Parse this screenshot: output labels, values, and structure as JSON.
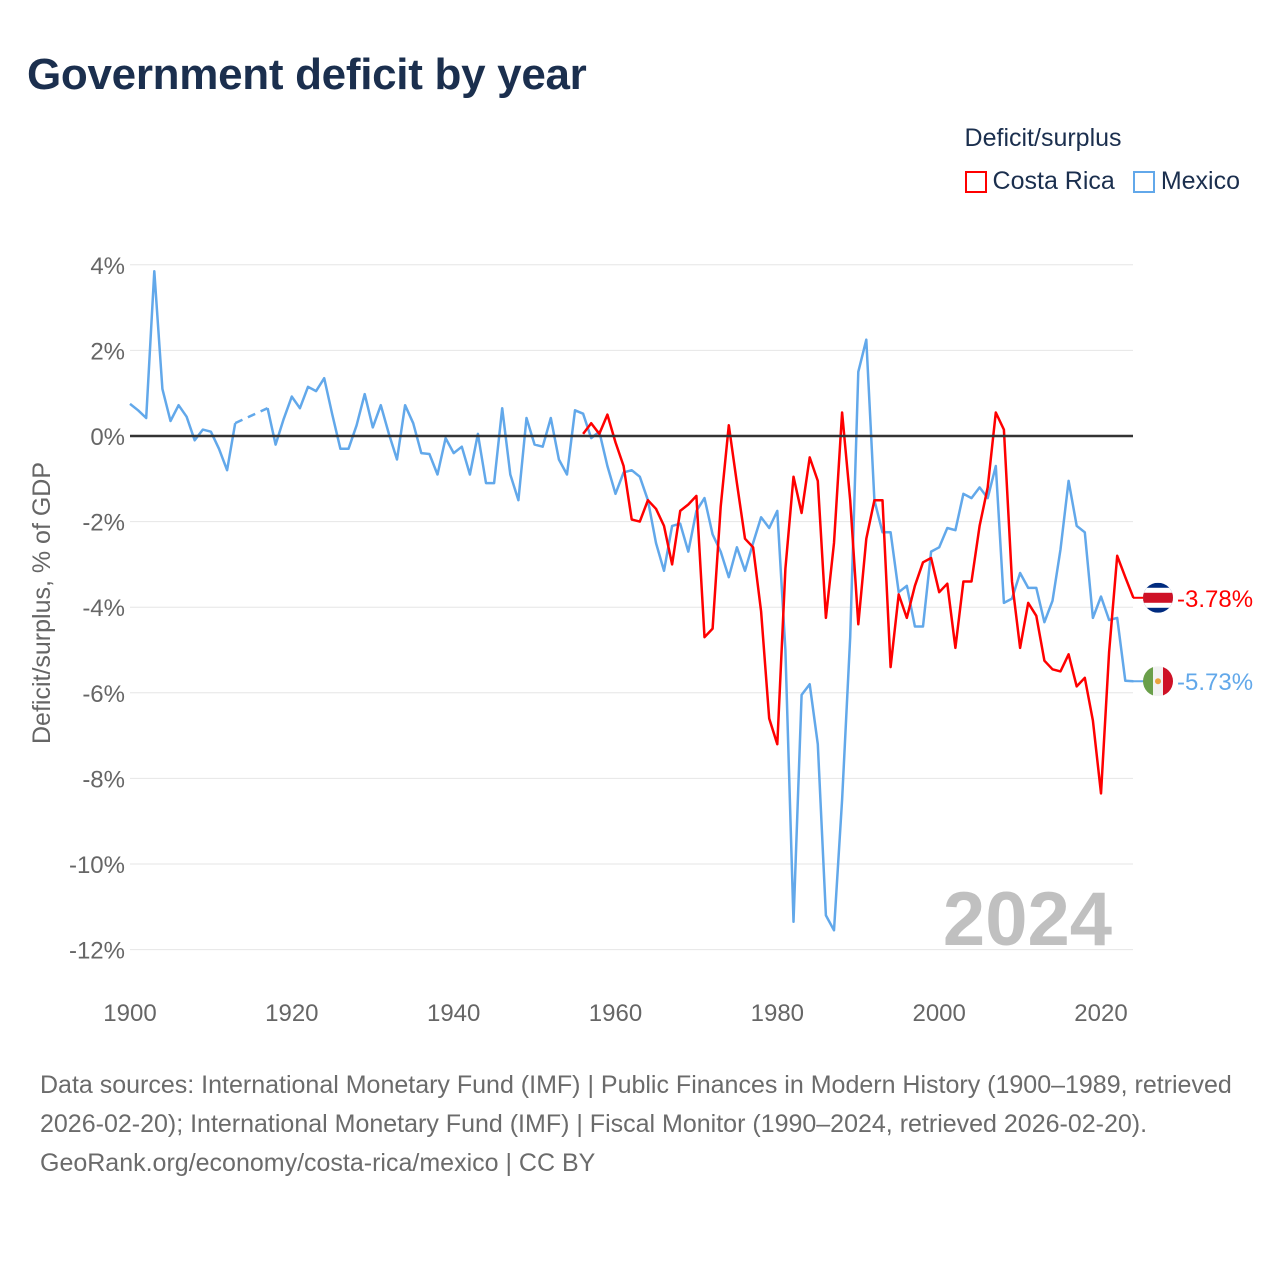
{
  "title": "Government deficit by year",
  "legend": {
    "title": "Deficit/surplus",
    "items": [
      {
        "name": "Costa Rica",
        "color": "#ff0000"
      },
      {
        "name": "Mexico",
        "color": "#62a8ea"
      }
    ]
  },
  "footer": {
    "sources": "Data sources: International Monetary Fund (IMF) | Public Finances in Modern History (1900–1989, retrieved 2026-02-20); International Monetary Fund (IMF) | Fiscal Monitor (1990–2024, retrieved 2026-02-20).",
    "credit": "GeoRank.org/economy/costa-rica/mexico | CC BY"
  },
  "chart_data": {
    "type": "line",
    "title": "Government deficit by year",
    "ylabel": "Deficit/surplus, % of GDP",
    "xlabel": "",
    "xlim": [
      1900,
      2024
    ],
    "ylim": [
      -12.5,
      4
    ],
    "xticks": [
      1900,
      1920,
      1940,
      1960,
      1980,
      2000,
      2020
    ],
    "xtick_labels": [
      "1900",
      "1920",
      "1940",
      "1960",
      "1980",
      "2000",
      "2020"
    ],
    "yticks": [
      4,
      2,
      0,
      -2,
      -4,
      -6,
      -8,
      -10,
      -12
    ],
    "ytick_labels": [
      "4%",
      "2%",
      "0%",
      "-2%",
      "-4%",
      "-6%",
      "-8%",
      "-10%",
      "-12%"
    ],
    "grid": true,
    "legend_position": "top-right",
    "current_year_label": "2024",
    "series": [
      {
        "name": "Costa Rica",
        "color": "#ff0000",
        "start_year": 1956,
        "end_label": "-3.78%",
        "values": [
          0.05,
          0.3,
          0.05,
          0.5,
          -0.15,
          -0.7,
          -1.95,
          -2.0,
          -1.5,
          -1.7,
          -2.1,
          -3.0,
          -1.75,
          -1.6,
          -1.4,
          -4.7,
          -4.5,
          -1.65,
          0.25,
          -1.1,
          -2.4,
          -2.6,
          -4.1,
          -6.6,
          -7.2,
          -3.1,
          -0.95,
          -1.8,
          -0.5,
          -1.05,
          -4.25,
          -2.5,
          0.55,
          -1.5,
          -4.4,
          -2.4,
          -1.5,
          -1.5,
          -5.4,
          -3.7,
          -4.25,
          -3.5,
          -2.95,
          -2.85,
          -3.65,
          -3.45,
          -4.95,
          -3.4,
          -3.4,
          -2.1,
          -1.2,
          0.55,
          0.15,
          -3.4,
          -4.95,
          -3.9,
          -4.2,
          -5.25,
          -5.45,
          -5.5,
          -5.1,
          -5.85,
          -5.65,
          -6.65,
          -8.35,
          -5.05,
          -2.8,
          -3.3,
          -3.78
        ]
      },
      {
        "name": "Mexico",
        "color": "#62a8ea",
        "start_year": 1900,
        "end_label": "-5.73%",
        "values": [
          0.75,
          0.6,
          0.42,
          3.85,
          1.1,
          0.35,
          0.72,
          0.45,
          -0.1,
          0.15,
          0.1,
          -0.3,
          -0.8,
          0.3,
          null,
          null,
          null,
          0.65,
          -0.2,
          0.4,
          0.92,
          0.65,
          1.15,
          1.05,
          1.35,
          0.5,
          -0.3,
          -0.3,
          0.25,
          0.98,
          0.2,
          0.72,
          0.05,
          -0.55,
          0.72,
          0.3,
          -0.4,
          -0.42,
          -0.9,
          -0.05,
          -0.4,
          -0.25,
          -0.9,
          0.05,
          -1.1,
          -1.1,
          0.65,
          -0.9,
          -1.5,
          0.42,
          -0.2,
          -0.25,
          0.42,
          -0.55,
          -0.9,
          0.6,
          0.52,
          -0.05,
          0.1,
          -0.7,
          -1.35,
          -0.85,
          -0.8,
          -0.95,
          -1.5,
          -2.5,
          -3.15,
          -2.1,
          -2.05,
          -2.7,
          -1.75,
          -1.45,
          -2.3,
          -2.7,
          -3.3,
          -2.6,
          -3.15,
          -2.5,
          -1.9,
          -2.15,
          -1.75,
          -5.0,
          -11.35,
          -6.05,
          -5.8,
          -7.2,
          -11.2,
          -11.55,
          -8.5,
          -4.7,
          1.5,
          2.25,
          -1.5,
          -2.25,
          -2.25,
          -3.65,
          -3.5,
          -4.45,
          -4.45,
          -2.7,
          -2.6,
          -2.15,
          -2.2,
          -1.35,
          -1.45,
          -1.2,
          -1.45,
          -0.7,
          -3.9,
          -3.8,
          -3.2,
          -3.55,
          -3.55,
          -4.35,
          -3.85,
          -2.65,
          -1.05,
          -2.1,
          -2.25,
          -4.25,
          -3.75,
          -4.3,
          -4.25,
          -5.72,
          -5.73
        ]
      }
    ]
  }
}
